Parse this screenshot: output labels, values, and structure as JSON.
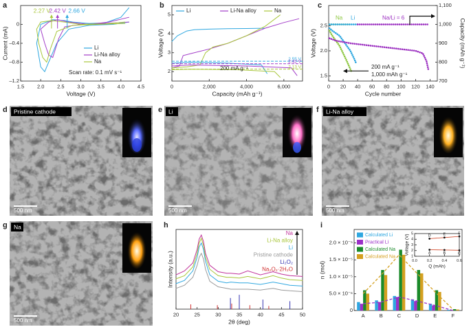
{
  "chart_data": [
    {
      "panel": "a",
      "type": "line",
      "xlabel": "Voltage (V)",
      "ylabel": "Current (mA)",
      "xlim": [
        1.5,
        4.5
      ],
      "xticks": [
        1.5,
        {
          "value": 2,
          "label": "2.0"
        },
        2.5,
        {
          "value": 3,
          "label": "3.0"
        },
        3.5,
        {
          "value": 4,
          "label": "4.0"
        },
        4.5
      ],
      "ylim": [
        -1.2,
        0.4
      ],
      "yticks": [
        {
          "value": -1.2,
          "label": "–1.2"
        },
        {
          "value": -0.8,
          "label": "–0.8"
        },
        {
          "value": -0.4,
          "label": "–0.4"
        },
        0
      ],
      "series": [
        {
          "name": "Li",
          "color": "#2ea7e0",
          "x": [
            4.2,
            3.8,
            3.2,
            2.7,
            2.4,
            2.2,
            2.1,
            2.0,
            1.9,
            2.0,
            2.3,
            2.6,
            2.8,
            3.2,
            3.6,
            4.0,
            4.2
          ],
          "values": [
            0.05,
            0.0,
            -0.02,
            -0.1,
            -0.4,
            -0.8,
            -1.0,
            -0.9,
            -0.4,
            0.0,
            0.1,
            0.08,
            0.05,
            0.02,
            0.03,
            0.15,
            0.35
          ]
        },
        {
          "name": "Li-Na alloy",
          "color": "#a23cc8",
          "x": [
            4.2,
            3.6,
            3.0,
            2.6,
            2.45,
            2.3,
            2.2,
            2.1,
            2.0,
            2.2,
            2.42,
            2.7,
            3.2,
            3.7,
            4.2
          ],
          "values": [
            0.05,
            0.02,
            0.0,
            -0.05,
            -0.3,
            -0.7,
            -0.65,
            -0.4,
            -0.1,
            0.05,
            0.1,
            0.05,
            0.0,
            0.05,
            0.15
          ]
        },
        {
          "name": "Na",
          "color": "#a9c63b",
          "x": [
            4.1,
            3.4,
            2.8,
            2.4,
            2.25,
            2.15,
            2.05,
            1.95,
            1.9,
            2.0,
            2.27,
            2.6,
            3.0,
            3.6,
            4.1
          ],
          "values": [
            0.02,
            0.0,
            -0.02,
            -0.15,
            -0.5,
            -0.8,
            -0.7,
            -0.4,
            -0.1,
            0.05,
            0.08,
            0.05,
            0.0,
            0.01,
            0.05
          ]
        }
      ],
      "markers": [
        {
          "value": 2.27,
          "label": "2.27 V",
          "color": "#a9c63b"
        },
        {
          "value": 2.42,
          "label": "2.42 V",
          "color": "#a23cc8"
        },
        {
          "value": 2.66,
          "label": "2.66 V",
          "color": "#2ea7e0"
        }
      ],
      "notes": [
        "Scan rate: 0.1 mV s⁻¹"
      ]
    },
    {
      "panel": "b",
      "type": "line",
      "xlabel": "Capacity (mAh g⁻¹)",
      "ylabel": "Voltage (V)",
      "xlim": [
        0,
        7000
      ],
      "xticks": [
        0,
        {
          "value": 2000,
          "label": "2,000"
        },
        {
          "value": 4000,
          "label": "4,000"
        },
        {
          "value": 6000,
          "label": "6,000"
        }
      ],
      "ylim": [
        1.5,
        5.5
      ],
      "yticks": [
        2,
        3,
        4,
        5
      ],
      "series": [
        {
          "name": "Li",
          "color": "#2ea7e0",
          "x": [
            0,
            300,
            800,
            1200,
            2000,
            3000,
            4000,
            5000
          ],
          "values": [
            3.6,
            3.9,
            4.15,
            4.22,
            4.25,
            4.27,
            4.28,
            4.3
          ]
        },
        {
          "name": "Li-Na alloy",
          "color": "#a23cc8",
          "x": [
            0,
            400,
            600,
            1000,
            2000,
            3000,
            4000,
            5000,
            6000,
            6800
          ],
          "values": [
            2.2,
            2.3,
            2.85,
            2.95,
            3.2,
            3.5,
            3.9,
            4.3,
            4.6,
            4.8
          ]
        },
        {
          "name": "Na",
          "color": "#a9c63b",
          "x": [
            0,
            800,
            1500,
            1800,
            2200,
            3000,
            4000,
            5000,
            5800
          ],
          "values": [
            2.2,
            2.25,
            2.35,
            3.0,
            3.3,
            3.5,
            3.9,
            4.4,
            5.0
          ]
        },
        {
          "color": "#2ea7e0",
          "x": [
            0,
            1000,
            3000,
            4800,
            5100
          ],
          "values": [
            2.45,
            2.5,
            2.45,
            2.35,
            1.9
          ]
        },
        {
          "color": "#a23cc8",
          "x": [
            0,
            1000,
            4000,
            6400,
            6700
          ],
          "values": [
            2.3,
            2.35,
            2.3,
            2.2,
            1.8
          ]
        },
        {
          "color": "#a9c63b",
          "x": [
            0,
            1000,
            3500,
            5500,
            5800
          ],
          "values": [
            2.1,
            2.13,
            2.1,
            2.0,
            1.7
          ]
        }
      ],
      "hlines": [
        {
          "value": 2.55,
          "label": "2.55 V",
          "color": "#2ea7e0"
        },
        {
          "value": 2.42,
          "label": "2.42 V",
          "color": "#a23cc8"
        },
        {
          "value": 2.13,
          "label": "2.13 V",
          "color": "#a9c63b"
        }
      ],
      "notes": [
        "200 mA g⁻¹"
      ]
    },
    {
      "panel": "c",
      "type": "line",
      "xlabel": "Cycle number",
      "ylabel": "Voltage (V)",
      "y2label": "Capacity (mAh g⁻¹)",
      "xlim": [
        0,
        150
      ],
      "xticks": [
        0,
        20,
        40,
        60,
        80,
        100,
        120,
        140
      ],
      "ylim": [
        1.4,
        2.9
      ],
      "yticks": [
        1.5,
        {
          "value": 2,
          "label": "2.0"
        },
        2.5
      ],
      "y2lim": [
        700,
        1100
      ],
      "y2ticks": [
        700,
        800,
        900,
        {
          "value": 1000,
          "label": "1,000"
        },
        {
          "value": 1100,
          "label": "1,100"
        }
      ],
      "series": [
        {
          "name": "Na",
          "color": "#8cc63f",
          "axis": "y2",
          "x": [
            1,
            5,
            10,
            15,
            20,
            25,
            30
          ],
          "values": [
            1000,
            1000,
            1000,
            1000,
            1000,
            1000,
            1000
          ]
        },
        {
          "name": "Li",
          "color": "#2ea7e0",
          "axis": "y2",
          "x": [
            1,
            10,
            20,
            30,
            40
          ],
          "values": [
            1000,
            1000,
            1000,
            1000,
            1000
          ]
        },
        {
          "name": "Na/Li = 6",
          "color": "#9b2fc0",
          "axis": "y2",
          "x": [
            40,
            60,
            80,
            100,
            120,
            138
          ],
          "values": [
            1000,
            1000,
            1000,
            1000,
            1000,
            1000
          ]
        },
        {
          "color": "#8cc63f",
          "x": [
            1,
            5,
            10,
            15,
            20,
            25,
            28,
            31
          ],
          "values": [
            2.4,
            2.3,
            2.2,
            2.1,
            1.95,
            1.8,
            1.7,
            1.6
          ]
        },
        {
          "color": "#2ea7e0",
          "x": [
            1,
            5,
            10,
            15,
            20,
            25,
            30,
            35,
            38
          ],
          "values": [
            2.45,
            2.4,
            2.35,
            2.3,
            2.2,
            2.1,
            2.0,
            1.85,
            1.75
          ]
        },
        {
          "color": "#9b2fc0",
          "x": [
            1,
            10,
            30,
            60,
            90,
            120,
            130,
            135,
            138
          ],
          "values": [
            2.25,
            2.2,
            2.15,
            2.1,
            2.05,
            2.0,
            1.95,
            1.8,
            1.6
          ]
        }
      ],
      "notes": [
        "200 mA g⁻¹",
        "1,000 mAh g⁻¹"
      ]
    },
    {
      "panel": "h",
      "type": "line",
      "xlabel": "2θ (deg)",
      "ylabel": "Intensity (a.u.)",
      "xlim": [
        20,
        50
      ],
      "xticks": [
        20,
        25,
        30,
        35,
        40,
        45,
        50
      ],
      "ylim": [
        0,
        10
      ],
      "x": [
        20,
        22,
        24,
        25,
        25.5,
        26,
        26.5,
        27,
        28,
        30,
        32,
        33,
        35,
        37,
        40,
        43,
        45,
        47,
        50
      ],
      "series": [
        {
          "name": "Na",
          "color": "#c0309a",
          "values": [
            4.3,
            4.8,
            5.8,
            7.5,
            8.8,
            9.3,
            8.5,
            7.0,
            5.5,
            4.7,
            4.5,
            4.5,
            4.4,
            4.8,
            4.3,
            4.7,
            4.4,
            4.2,
            4.1
          ]
        },
        {
          "name": "Li-Na alloy",
          "color": "#a9c63b",
          "values": [
            3.8,
            4.2,
            5.3,
            7.0,
            8.3,
            8.9,
            8.0,
            6.5,
            5.0,
            4.2,
            4.0,
            4.0,
            3.9,
            4.1,
            3.8,
            4.2,
            3.9,
            3.7,
            3.6
          ]
        },
        {
          "name": "Li",
          "color": "#2ea7e0",
          "values": [
            3.2,
            3.6,
            4.8,
            6.5,
            7.8,
            8.3,
            7.5,
            6.0,
            4.3,
            3.5,
            3.3,
            3.4,
            3.3,
            3.3,
            3.1,
            3.4,
            3.2,
            3.0,
            2.9
          ]
        },
        {
          "name": "Pristine cathode",
          "color": "#9a9a9a",
          "values": [
            2.6,
            3.0,
            4.0,
            5.5,
            6.5,
            7.0,
            6.3,
            5.0,
            3.5,
            2.8,
            2.6,
            2.5,
            2.5,
            2.5,
            2.4,
            2.6,
            2.4,
            2.3,
            2.2
          ]
        },
        {
          "name": "Li₂O₂",
          "color": "#3030b0",
          "style": "sticks",
          "x": [
            32.9,
            35.0,
            40.6,
            47.0
          ],
          "values": [
            1.4,
            1.8,
            1.2,
            1.0
          ]
        },
        {
          "name": "Na₂O₂·2H₂O",
          "color": "#d03030",
          "style": "sticks",
          "x": [
            23.5,
            29.8,
            33.2,
            37.5,
            42.0
          ],
          "values": [
            0.6,
            0.5,
            0.7,
            0.5,
            0.4
          ]
        }
      ]
    },
    {
      "panel": "i",
      "type": "bar",
      "ylabel": "n (mol)",
      "categories": [
        "A",
        "B",
        "C",
        "D",
        "E",
        "F"
      ],
      "ylim": [
        0,
        2.4e-05
      ],
      "yticks": [
        0,
        {
          "value": 5e-06,
          "label": "5.0 × 10⁻⁶"
        },
        {
          "value": 1e-05,
          "label": "1.0 × 10⁻⁵"
        },
        {
          "value": 1.5e-05,
          "label": "1.5 × 10⁻⁵"
        },
        {
          "value": 2e-05,
          "label": "2.0 × 10⁻⁵"
        }
      ],
      "series": [
        {
          "name": "Calculated Li",
          "color": "#2ea7e0",
          "values": [
            2.5e-06,
            3e-06,
            4.3e-06,
            3.3e-06,
            2e-06,
            2e-07
          ]
        },
        {
          "name": "Practical Li",
          "color": "#9b30c8",
          "values": [
            2e-06,
            2.5e-06,
            4e-06,
            2.8e-06,
            1.5e-06,
            0
          ]
        },
        {
          "name": "Calculated Na",
          "color": "#1a8a2a",
          "values": [
            6e-06,
            1.2e-05,
            1.8e-05,
            1.2e-05,
            6e-06,
            4e-07
          ]
        },
        {
          "name": "Calculated Na",
          "color": "#d4a020",
          "values": [
            5e-06,
            1.05e-05,
            1.65e-05,
            1.1e-05,
            5.5e-06,
            3e-07
          ]
        }
      ]
    },
    {
      "type": "line",
      "xlabel": "Q (mAh)",
      "ylabel": "Voltage (V)",
      "xlim": [
        0,
        0.6
      ],
      "xticks": [
        {
          "value": 0,
          "label": "0.0"
        },
        0.2,
        0.4,
        0.6
      ],
      "ylim": [
        1,
        5
      ],
      "yticks": [
        1,
        2,
        3,
        4,
        5
      ],
      "series": [
        {
          "color": "#d04020",
          "x": [
            0.2,
            0.4,
            0.6
          ],
          "values": [
            2.15,
            2.1,
            2.05
          ],
          "point_labels": [
            "A",
            "B",
            "C"
          ]
        },
        {
          "color": "#d04020",
          "x": [
            0.2,
            0.4,
            0.6
          ],
          "values": [
            4.1,
            4.3,
            4.5
          ],
          "point_labels": [
            "D",
            "E",
            "F"
          ]
        }
      ]
    }
  ],
  "images": [
    {
      "panel": "d",
      "label": "Pristine cathode",
      "scale": "500 nm"
    },
    {
      "panel": "e",
      "label": "Li",
      "scale": "500 nm"
    },
    {
      "panel": "f",
      "label": "Li-Na alloy",
      "scale": "500 nm"
    },
    {
      "panel": "g",
      "label": "Na",
      "scale": "500 nm"
    }
  ]
}
